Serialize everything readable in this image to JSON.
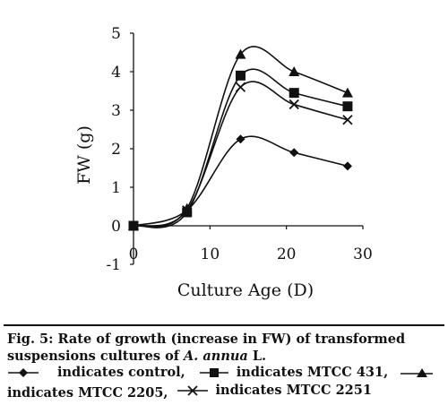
{
  "chart_data": {
    "type": "line",
    "xlabel": "Culture Age (D)",
    "ylabel": "FW (g)",
    "xlim": [
      0,
      30
    ],
    "ylim": [
      -1,
      5
    ],
    "xticks": [
      "0",
      "10",
      "20",
      "30"
    ],
    "yticks": [
      "-1",
      "0",
      "1",
      "2",
      "3",
      "4",
      "5"
    ],
    "grid": false,
    "x": [
      0,
      7,
      14,
      21,
      28
    ],
    "series": [
      {
        "name": "control",
        "marker": "diamond",
        "values": [
          0,
          0.4,
          2.25,
          1.9,
          1.55
        ]
      },
      {
        "name": "MTCC 431",
        "marker": "square",
        "values": [
          0,
          0.35,
          3.9,
          3.45,
          3.1
        ]
      },
      {
        "name": "MTCC 2205",
        "marker": "triangle",
        "values": [
          0,
          0.45,
          4.45,
          4.0,
          3.45
        ]
      },
      {
        "name": "MTCC 2251",
        "marker": "x",
        "values": [
          0,
          0.4,
          3.6,
          3.15,
          2.75
        ]
      }
    ]
  },
  "caption": {
    "line1": "Fig. 5: Rate of growth (increase in FW) of transformed",
    "line2_pre": "suspensions cultures of ",
    "line2_species": "A. annua",
    "line2_post": " L."
  },
  "legend": {
    "indicates": "indicates",
    "sep": ","
  }
}
